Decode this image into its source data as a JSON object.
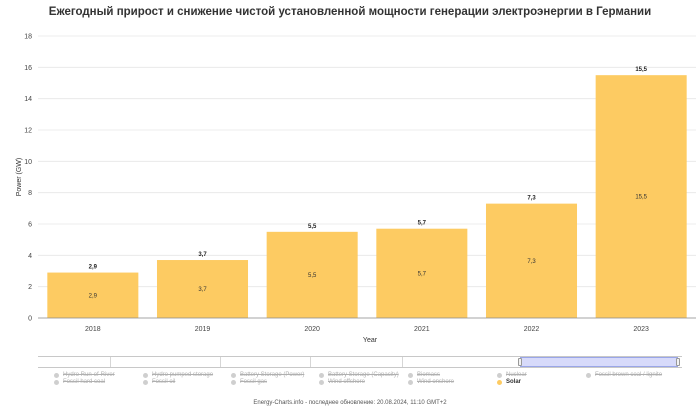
{
  "page": {
    "title": "Ежегодный прирост и снижение чистой установленной мощности генерации электроэнергии в Германии",
    "footer": "Energy-Charts.info - последнее обновление: 20.08.2024, 11:10 GMT+2"
  },
  "colors": {
    "solar": "#fdcb62",
    "inactive_legend": "#cfcfcf",
    "navigator_window": "#9aa6e8"
  },
  "chart_data": {
    "type": "bar",
    "title": "Ежегодный прирост и снижение чистой установленной мощности генерации электроэнергии в Германии",
    "xlabel": "Year",
    "ylabel": "Power (GW)",
    "categories": [
      "2018",
      "2019",
      "2020",
      "2021",
      "2022",
      "2023"
    ],
    "series": [
      {
        "name": "Solar",
        "values": [
          2.9,
          3.7,
          5.5,
          5.7,
          7.3,
          15.5
        ],
        "labels": [
          "2,9",
          "3,7",
          "5,5",
          "5,7",
          "7,3",
          "15,5"
        ]
      }
    ],
    "ylim": [
      0,
      18
    ],
    "yticks": [
      0,
      2,
      4,
      6,
      8,
      10,
      12,
      14,
      16,
      18
    ],
    "grid": true,
    "legend_position": "bottom"
  },
  "legend": {
    "items": [
      {
        "label": "Hydro Run-of-River",
        "active": false
      },
      {
        "label": "Fossil hard coal",
        "active": false
      },
      {
        "label": "Hydro pumped storage",
        "active": false
      },
      {
        "label": "Fossil oil",
        "active": false
      },
      {
        "label": "Battery Storage (Power)",
        "active": false
      },
      {
        "label": "Fossil gas",
        "active": false
      },
      {
        "label": "Battery Storage (Capacity)",
        "active": false
      },
      {
        "label": "Wind offshore",
        "active": false
      },
      {
        "label": "Biomass",
        "active": false
      },
      {
        "label": "Wind onshore",
        "active": false
      },
      {
        "label": "Nuclear",
        "active": false
      },
      {
        "label": "Solar",
        "active": true
      },
      {
        "label": "Fossil brown coal / lignite",
        "active": false
      }
    ]
  }
}
